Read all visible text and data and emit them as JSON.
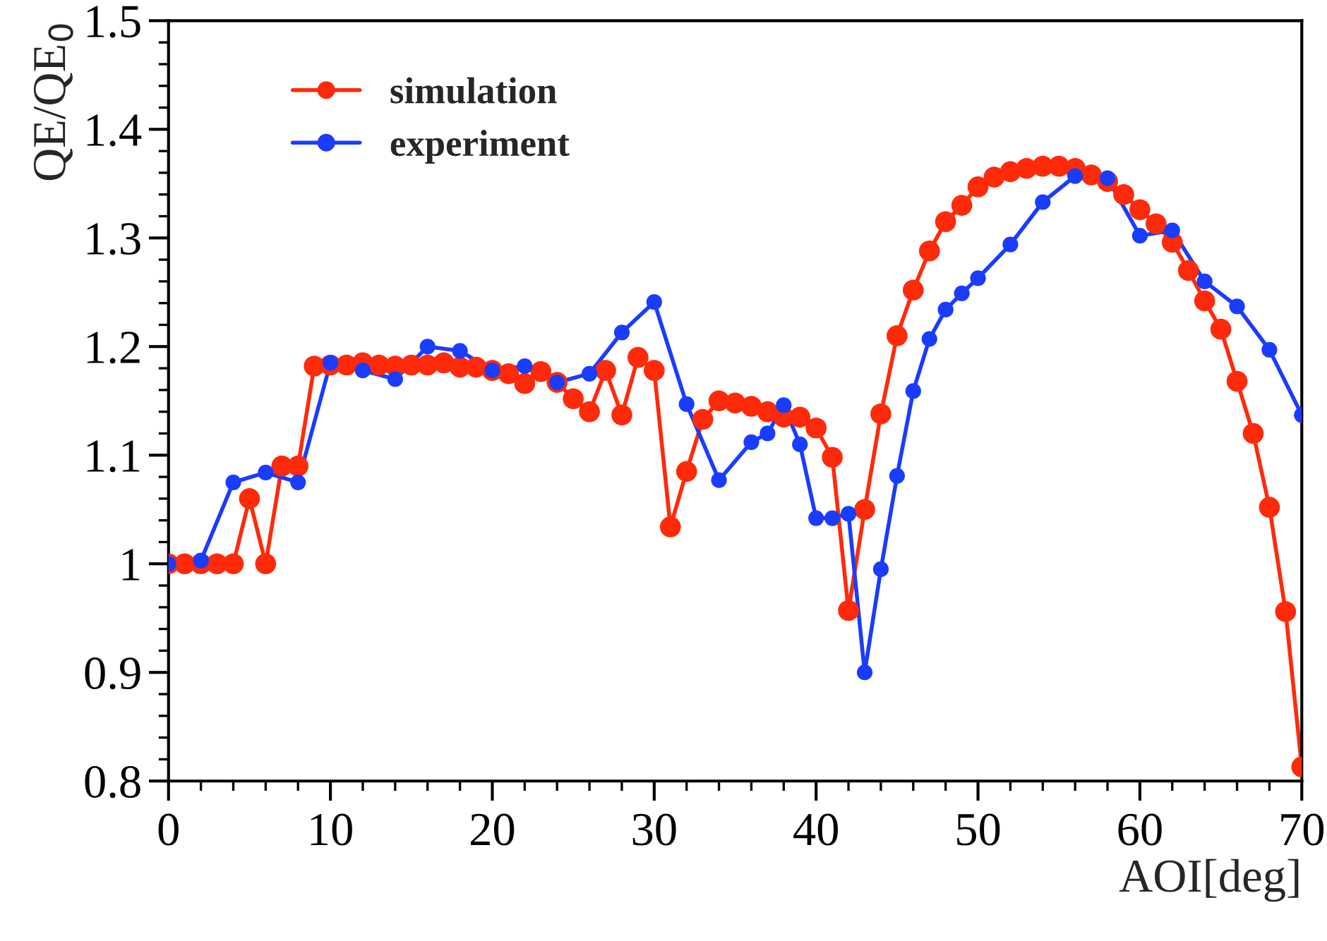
{
  "chart_data": {
    "type": "line",
    "xlabel": "AOI[deg]",
    "ylabel": "QE/QE$_{0}$",
    "xlim": [
      0,
      70
    ],
    "ylim": [
      0.8,
      1.5
    ],
    "xticks": [
      0,
      10,
      20,
      30,
      40,
      50,
      60,
      70
    ],
    "yticks": [
      0.8,
      0.9,
      1,
      1.1,
      1.2,
      1.3,
      1.4,
      1.5
    ],
    "grid": false,
    "legend": "top left",
    "marker": "circle",
    "line_style": "solid",
    "series": [
      {
        "name": "simulation",
        "color": "#ff2a0a",
        "x": [
          0,
          1,
          2,
          3,
          4,
          5,
          6,
          7,
          8,
          9,
          10,
          11,
          12,
          13,
          14,
          15,
          16,
          17,
          18,
          19,
          20,
          21,
          22,
          23,
          24,
          25,
          26,
          27,
          28,
          29,
          30,
          31,
          32,
          33,
          34,
          35,
          36,
          37,
          38,
          39,
          40,
          41,
          42,
          43,
          44,
          45,
          46,
          47,
          48,
          49,
          50,
          51,
          52,
          53,
          54,
          55,
          56,
          57,
          58,
          59,
          60,
          61,
          62,
          63,
          64,
          65,
          66,
          67,
          68,
          69,
          70
        ],
        "values": [
          1.0,
          1.0,
          1.0,
          1.0,
          1.0,
          1.06,
          1.0,
          1.09,
          1.09,
          1.182,
          1.183,
          1.183,
          1.185,
          1.183,
          1.182,
          1.183,
          1.183,
          1.185,
          1.181,
          1.181,
          1.178,
          1.175,
          1.166,
          1.177,
          1.167,
          1.152,
          1.14,
          1.178,
          1.137,
          1.19,
          1.178,
          1.034,
          1.085,
          1.133,
          1.15,
          1.148,
          1.145,
          1.14,
          1.135,
          1.135,
          1.125,
          1.098,
          0.957,
          1.05,
          1.138,
          1.21,
          1.252,
          1.288,
          1.315,
          1.33,
          1.347,
          1.356,
          1.361,
          1.364,
          1.366,
          1.366,
          1.364,
          1.358,
          1.352,
          1.34,
          1.326,
          1.313,
          1.296,
          1.27,
          1.242,
          1.216,
          1.168,
          1.12,
          1.052,
          0.956,
          0.813
        ]
      },
      {
        "name": "experiment",
        "color": "#1a3cff",
        "x": [
          0,
          2,
          4,
          6,
          8,
          10,
          12,
          14,
          16,
          18,
          20,
          22,
          24,
          26,
          28,
          30,
          32,
          34,
          36,
          37,
          38,
          39,
          40,
          41,
          42,
          43,
          44,
          45,
          46,
          47,
          48,
          49,
          50,
          52,
          54,
          56,
          58,
          60,
          62,
          64,
          66,
          68,
          70
        ],
        "values": [
          1.0,
          1.003,
          1.075,
          1.084,
          1.075,
          1.185,
          1.178,
          1.17,
          1.2,
          1.196,
          1.178,
          1.182,
          1.167,
          1.175,
          1.213,
          1.241,
          1.147,
          1.077,
          1.112,
          1.12,
          1.146,
          1.11,
          1.042,
          1.042,
          1.046,
          0.9,
          0.995,
          1.081,
          1.159,
          1.207,
          1.234,
          1.249,
          1.263,
          1.294,
          1.333,
          1.357,
          1.355,
          1.302,
          1.307,
          1.26,
          1.237,
          1.197,
          1.137
        ]
      }
    ]
  }
}
